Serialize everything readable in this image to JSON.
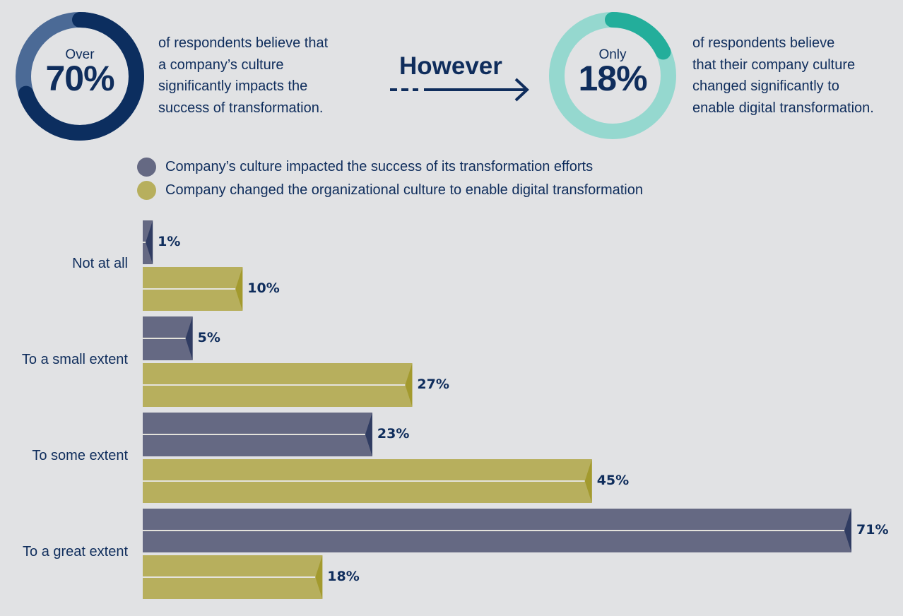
{
  "stats": [
    {
      "prefix": "Over",
      "value": "70%",
      "percent": 70,
      "lines": [
        "of respondents believe that",
        "a company’s culture",
        "significantly impacts the",
        "success of transformation."
      ],
      "ring_color": "#0c2e5f",
      "ring_light_color": "#4b6a96"
    },
    {
      "prefix": "Only",
      "value": "18%",
      "percent": 18,
      "lines": [
        "of respondents believe",
        "that their company culture",
        "changed significantly to",
        "enable digital transformation."
      ],
      "ring_color": "#23ae9b",
      "ring_light_color": "#95d8cf"
    }
  ],
  "connector": {
    "label": "However",
    "icon": "arrow-right-icon"
  },
  "chart_data": {
    "type": "bar",
    "orientation": "horizontal",
    "title": "",
    "xlabel": "",
    "ylabel": "",
    "xlim": [
      0,
      71
    ],
    "grid": false,
    "legend_position": "top",
    "categories": [
      "Not at all",
      "To a small extent",
      "To some extent",
      "To a great extent"
    ],
    "series": [
      {
        "name": "Company’s culture impacted the success of its transformation efforts",
        "values": [
          1,
          5,
          23,
          71
        ],
        "labels": [
          "1%",
          "5%",
          "23%",
          "71%"
        ],
        "color": "#656983",
        "edge_color": "#303c62"
      },
      {
        "name": "Company changed the organizational culture to enable digital transformation",
        "values": [
          10,
          27,
          45,
          18
        ],
        "labels": [
          "10%",
          "27%",
          "45%",
          "18%"
        ],
        "color": "#b7af5d",
        "edge_color": "#a39a2e"
      }
    ]
  }
}
